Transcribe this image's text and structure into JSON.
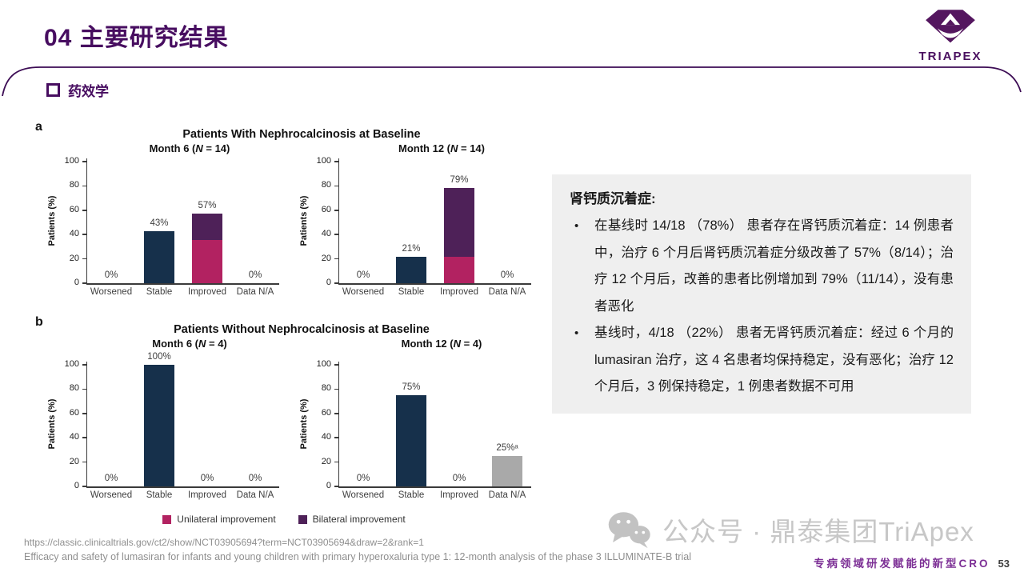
{
  "header": {
    "title": "04 主要研究结果",
    "logo_text": "TRIAPEX"
  },
  "section": {
    "label": "药效学"
  },
  "colors": {
    "brand_purple": "#470d60",
    "navy_bar": "#16304b",
    "unilateral": "#b22261",
    "bilateral": "#4e2158",
    "na_gray": "#a9a9a9",
    "textbox_bg": "#efefef",
    "footer_purple": "#7c2f95",
    "watermark_gray": "#c7c7c7"
  },
  "chart_data": [
    {
      "panel": "a",
      "type": "bar",
      "title": "Patients With Nephrocalcinosis at Baseline",
      "ylabel": "Patients (%)",
      "ylim": [
        0,
        100
      ],
      "yticks": [
        0,
        20,
        40,
        60,
        80,
        100
      ],
      "grid": false,
      "categories": [
        "Worsened",
        "Stable",
        "Improved",
        "Data N/A"
      ],
      "charts": [
        {
          "subtitle": "Month 6 (N = 14)",
          "bars": [
            {
              "category": "Worsened",
              "label": "0%",
              "segments": []
            },
            {
              "category": "Stable",
              "label": "43%",
              "segments": [
                {
                  "name": "stable",
                  "value": 43,
                  "color": "#16304b"
                }
              ]
            },
            {
              "category": "Improved",
              "label": "57%",
              "segments": [
                {
                  "name": "unilateral-improvement",
                  "value": 35.7,
                  "color": "#b22261"
                },
                {
                  "name": "bilateral-improvement",
                  "value": 21.4,
                  "color": "#4e2158"
                }
              ]
            },
            {
              "category": "Data N/A",
              "label": "0%",
              "segments": []
            }
          ]
        },
        {
          "subtitle": "Month 12 (N = 14)",
          "bars": [
            {
              "category": "Worsened",
              "label": "0%",
              "segments": []
            },
            {
              "category": "Stable",
              "label": "21%",
              "segments": [
                {
                  "name": "stable",
                  "value": 21.4,
                  "color": "#16304b"
                }
              ]
            },
            {
              "category": "Improved",
              "label": "79%",
              "segments": [
                {
                  "name": "unilateral-improvement",
                  "value": 21.4,
                  "color": "#b22261"
                },
                {
                  "name": "bilateral-improvement",
                  "value": 57.2,
                  "color": "#4e2158"
                }
              ]
            },
            {
              "category": "Data N/A",
              "label": "0%",
              "segments": []
            }
          ]
        }
      ]
    },
    {
      "panel": "b",
      "type": "bar",
      "title": "Patients Without Nephrocalcinosis at Baseline",
      "ylabel": "Patients (%)",
      "ylim": [
        0,
        100
      ],
      "yticks": [
        0,
        20,
        40,
        60,
        80,
        100
      ],
      "grid": false,
      "categories": [
        "Worsened",
        "Stable",
        "Improved",
        "Data N/A"
      ],
      "charts": [
        {
          "subtitle": "Month 6 (N = 4)",
          "bars": [
            {
              "category": "Worsened",
              "label": "0%",
              "segments": []
            },
            {
              "category": "Stable",
              "label": "100%",
              "segments": [
                {
                  "name": "stable",
                  "value": 100,
                  "color": "#16304b"
                }
              ]
            },
            {
              "category": "Improved",
              "label": "0%",
              "segments": []
            },
            {
              "category": "Data N/A",
              "label": "0%",
              "segments": []
            }
          ]
        },
        {
          "subtitle": "Month 12 (N = 4)",
          "bars": [
            {
              "category": "Worsened",
              "label": "0%",
              "segments": []
            },
            {
              "category": "Stable",
              "label": "75%",
              "segments": [
                {
                  "name": "stable",
                  "value": 75,
                  "color": "#16304b"
                }
              ]
            },
            {
              "category": "Improved",
              "label": "0%",
              "segments": []
            },
            {
              "category": "Data N/A",
              "label": "25%ᵃ",
              "segments": [
                {
                  "name": "data-not-available",
                  "value": 25,
                  "color": "#a9a9a9"
                }
              ]
            }
          ]
        }
      ]
    }
  ],
  "legend": [
    {
      "label": "Unilateral improvement",
      "color": "#b22261"
    },
    {
      "label": "Bilateral improvement",
      "color": "#4e2158"
    }
  ],
  "textbox": {
    "heading": "肾钙质沉着症:",
    "bullets": [
      "在基线时 14/18 （78%） 患者存在肾钙质沉着症：14 例患者中，治疗 6 个月后肾钙质沉着症分级改善了 57%（8/14）；治疗 12 个月后，改善的患者比例增加到 79%（11/14），没有患者恶化",
      "基线时，4/18 （22%） 患者无肾钙质沉着症：经过 6 个月的 lumasiran 治疗，这 4 名患者均保持稳定，没有恶化；治疗 12 个月后，3 例保持稳定，1 例患者数据不可用"
    ]
  },
  "footer": {
    "url": "https://classic.clinicaltrials.gov/ct2/show/NCT03905694?term=NCT03905694&draw=2&rank=1",
    "citation": "Efficacy and safety of lumasiran for infants and young children with primary hyperoxaluria type 1: 12-month analysis of the phase 3 ILLUMINATE-B trial",
    "watermark": "公众号 · 鼎泰集团TriApex",
    "tagline": "专病领域研发赋能的新型CRO",
    "page": "53"
  }
}
